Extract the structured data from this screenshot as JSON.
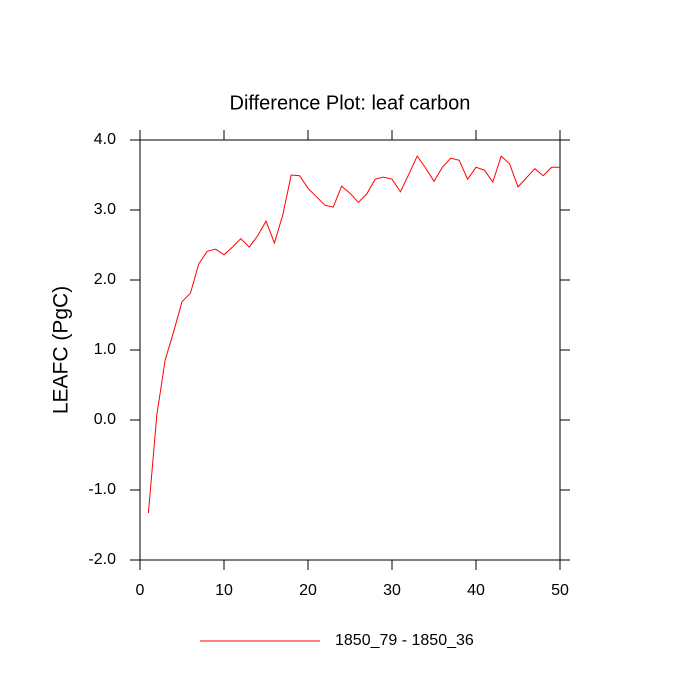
{
  "chart_data": {
    "type": "line",
    "title": "Difference Plot: leaf carbon",
    "y_label": "LEAFC  (PgC)",
    "x": [
      1,
      2,
      3,
      4,
      5,
      6,
      7,
      8,
      9,
      10,
      11,
      12,
      13,
      14,
      15,
      16,
      17,
      18,
      19,
      20,
      21,
      22,
      23,
      24,
      25,
      26,
      27,
      28,
      29,
      30,
      31,
      32,
      33,
      34,
      35,
      36,
      37,
      38,
      39,
      40,
      41,
      42,
      43,
      44,
      45,
      46,
      47,
      48,
      49,
      50
    ],
    "series": [
      {
        "name": "1850_79 - 1850_36",
        "color": "#ff0000",
        "values": [
          -1.33,
          0.07,
          0.86,
          1.26,
          1.69,
          1.81,
          2.23,
          2.41,
          2.44,
          2.36,
          2.47,
          2.59,
          2.47,
          2.63,
          2.84,
          2.53,
          2.93,
          3.5,
          3.49,
          3.31,
          3.19,
          3.07,
          3.04,
          3.34,
          3.24,
          3.11,
          3.23,
          3.44,
          3.47,
          3.44,
          3.26,
          3.51,
          3.77,
          3.6,
          3.41,
          3.61,
          3.74,
          3.71,
          3.44,
          3.61,
          3.57,
          3.4,
          3.77,
          3.66,
          3.33,
          3.46,
          3.59,
          3.49,
          3.61,
          3.61
        ]
      }
    ],
    "xlim": [
      0,
      50
    ],
    "xticks": [
      0,
      10,
      20,
      30,
      40,
      50
    ],
    "ylim": [
      -2,
      4
    ],
    "yticks": [
      {
        "value": -2,
        "label": "-2.0"
      },
      {
        "value": -1,
        "label": "-1.0"
      },
      {
        "value": 0,
        "label": "0.0"
      },
      {
        "value": 1,
        "label": "1.0"
      },
      {
        "value": 2,
        "label": "2.0"
      },
      {
        "value": 3,
        "label": "3.0"
      },
      {
        "value": 4,
        "label": "4.0"
      }
    ]
  }
}
